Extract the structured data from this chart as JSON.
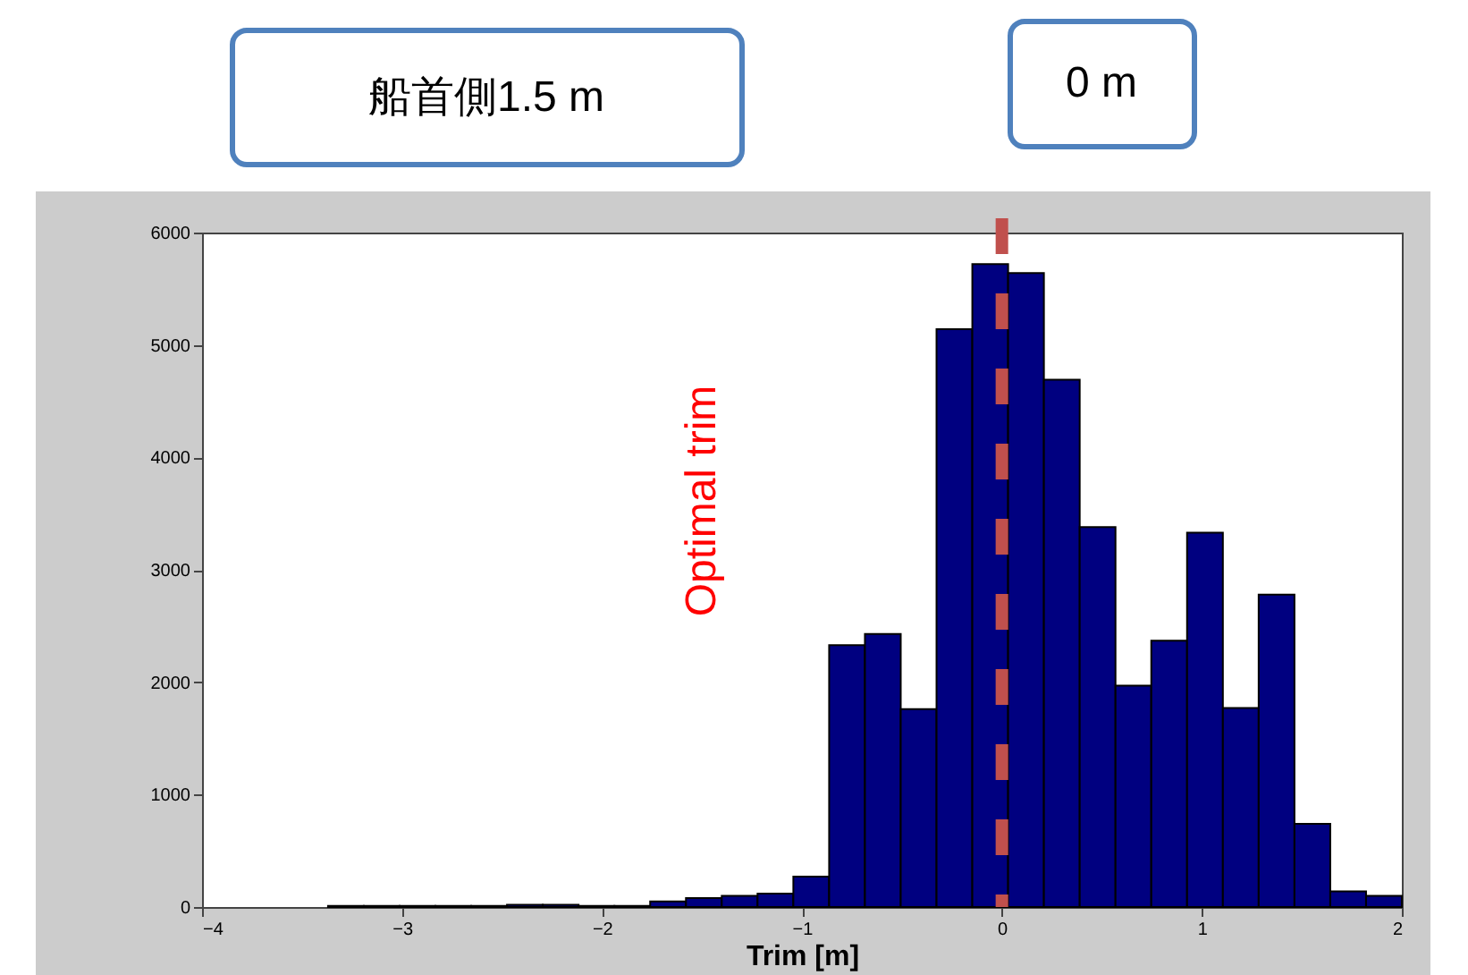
{
  "chart_data": {
    "type": "histogram",
    "xlabel": "Trim [m]",
    "bins": [
      -3.37,
      -3.191,
      -3.012,
      -2.833,
      -2.654,
      -2.475,
      -2.296,
      -2.117,
      -1.938,
      -1.759,
      -1.58,
      -1.401,
      -1.222,
      -1.043,
      -0.864,
      -0.685,
      -0.506,
      -0.327,
      -0.148,
      0.031,
      0.21,
      0.389,
      0.568,
      0.747,
      0.926,
      1.105,
      1.284,
      1.463,
      1.642,
      1.821,
      2.0
    ],
    "values": [
      10,
      10,
      10,
      10,
      10,
      20,
      20,
      10,
      10,
      50,
      80,
      100,
      120,
      270,
      2330,
      2430,
      1760,
      5140,
      5720,
      5640,
      4690,
      3380,
      1970,
      2370,
      3330,
      1770,
      2780,
      740,
      140,
      100
    ],
    "color": "#000080",
    "xlim": [
      -4,
      2
    ],
    "xticks": [
      -4,
      -3,
      -2,
      -1,
      0,
      1,
      2
    ],
    "ylim": [
      0,
      6000
    ],
    "yticks": [
      0,
      1000,
      2000,
      3000,
      4000,
      5000,
      6000
    ],
    "grid": false,
    "ref_lines": [
      {
        "axis": "x",
        "value": 0,
        "color": "#c0504d",
        "line_style": "dashed"
      }
    ],
    "annotations": [
      "船首側1.5 m",
      "0 m",
      "Optimal trim"
    ]
  }
}
